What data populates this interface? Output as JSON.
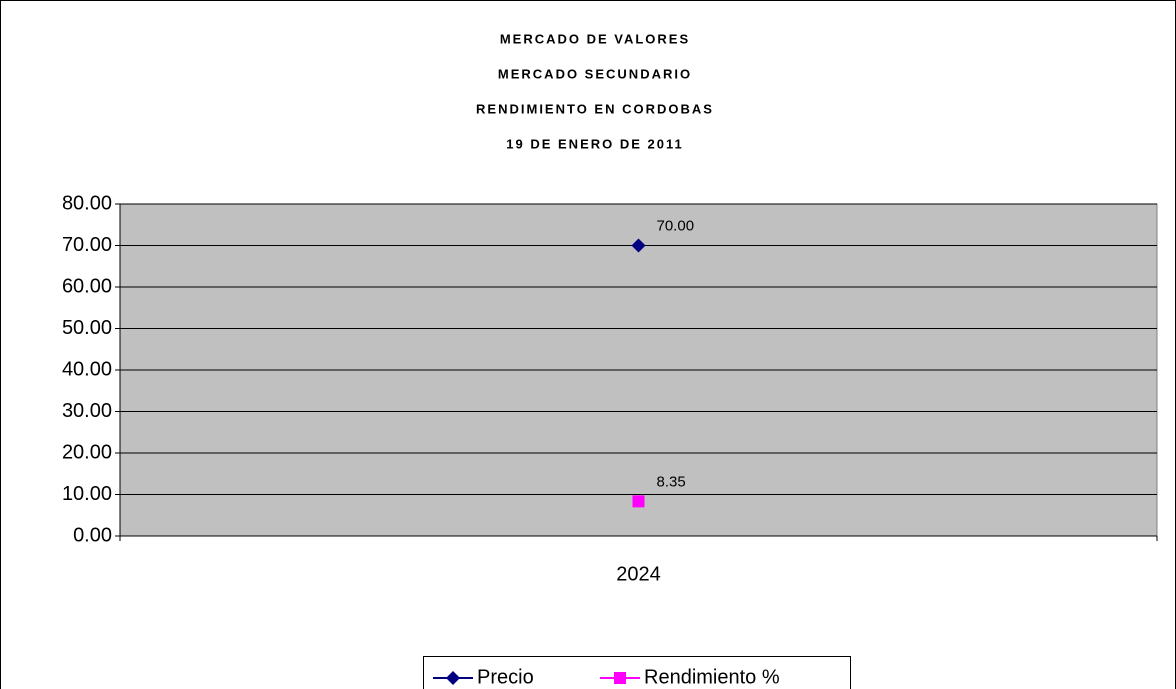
{
  "chart_data": {
    "type": "line",
    "title": [
      "MERCADO DE VALORES",
      "MERCADO SECUNDARIO",
      "RENDIMIENTO EN CORDOBAS",
      "19 DE ENERO DE 2011"
    ],
    "categories": [
      "2024"
    ],
    "series": [
      {
        "name": "Precio",
        "color": "#000080",
        "marker": "diamond",
        "values": [
          70
        ],
        "value_labels": [
          "70.00"
        ]
      },
      {
        "name": "Rendimiento %",
        "color": "#ff00ff",
        "marker": "square",
        "values": [
          8.35
        ]
      }
    ],
    "ylim": [
      0,
      80
    ],
    "yticks": [
      {
        "value": 0,
        "label": "0.00"
      },
      {
        "value": 10,
        "label": "10.00"
      },
      {
        "value": 20,
        "label": "20.00"
      },
      {
        "value": 30,
        "label": "30.00"
      },
      {
        "value": 40,
        "label": "40.00"
      },
      {
        "value": 50,
        "label": "50.00"
      },
      {
        "value": 60,
        "label": "60.00"
      },
      {
        "value": 70,
        "label": "70.00"
      },
      {
        "value": 80,
        "label": "80.00"
      }
    ],
    "grid": true,
    "legend": "bottom"
  }
}
